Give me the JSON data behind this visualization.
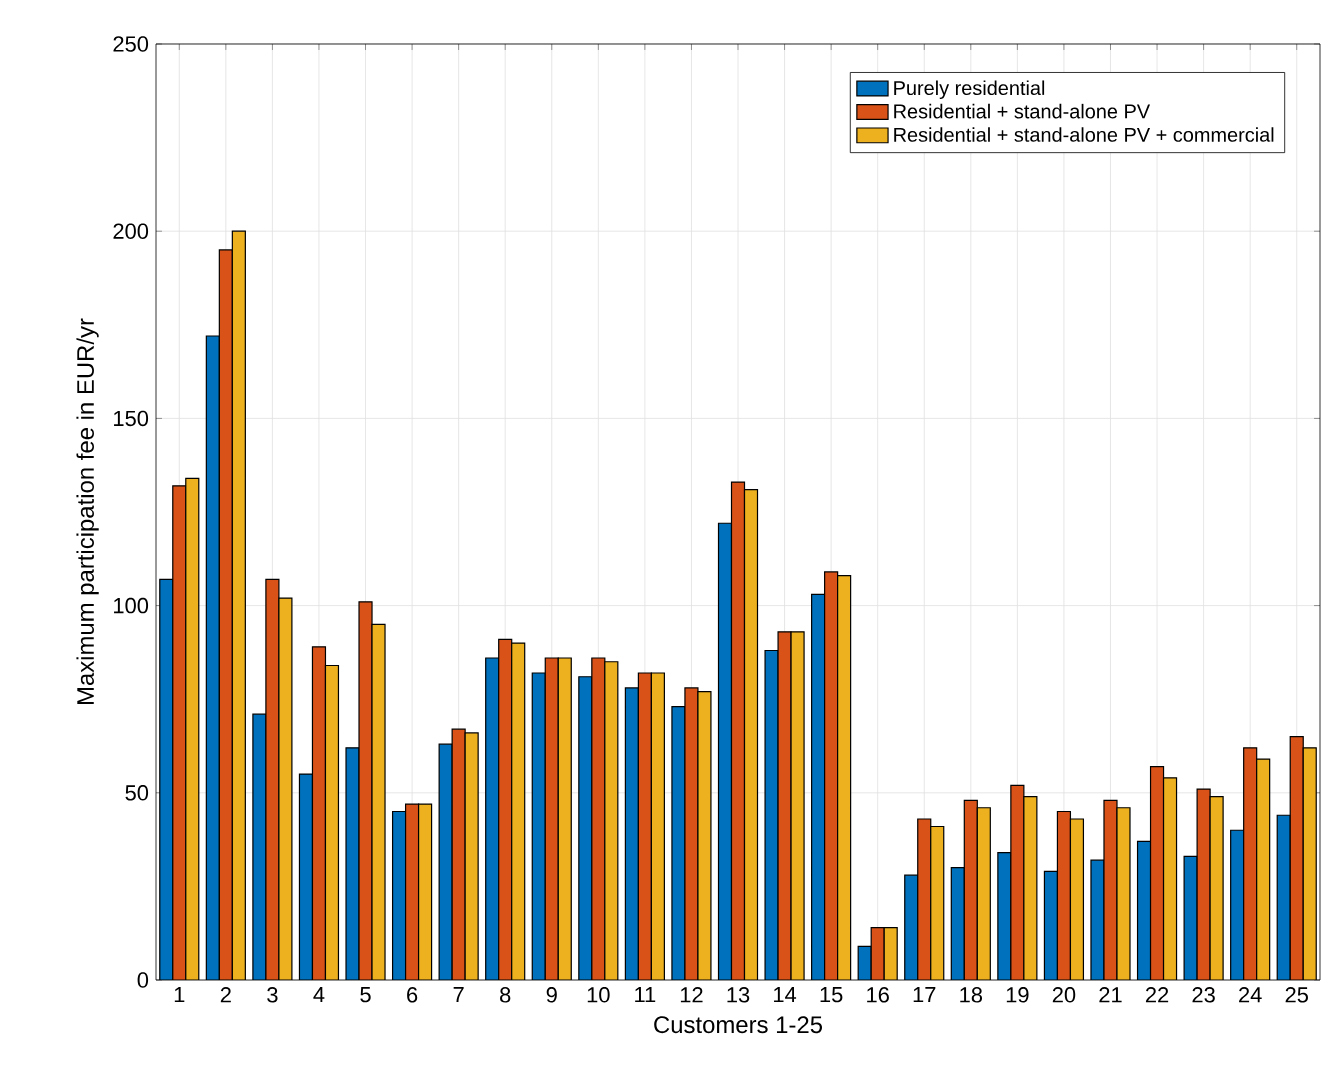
{
  "chart_data": {
    "type": "bar",
    "xlabel": "Customers 1-25",
    "ylabel": "Maximum participation fee in EUR/yr",
    "categories": [
      "1",
      "2",
      "3",
      "4",
      "5",
      "6",
      "7",
      "8",
      "9",
      "10",
      "11",
      "12",
      "13",
      "14",
      "15",
      "16",
      "17",
      "18",
      "19",
      "20",
      "21",
      "22",
      "23",
      "24",
      "25"
    ],
    "series": [
      {
        "name": "Purely residential",
        "color": "#0072bd",
        "values": [
          107,
          172,
          71,
          55,
          62,
          45,
          63,
          86,
          82,
          81,
          78,
          73,
          122,
          88,
          103,
          9,
          28,
          30,
          34,
          29,
          32,
          37,
          33,
          40,
          44
        ]
      },
      {
        "name": "Residential + stand-alone PV",
        "color": "#d95319",
        "values": [
          132,
          195,
          107,
          89,
          101,
          47,
          67,
          91,
          86,
          86,
          82,
          78,
          133,
          93,
          109,
          14,
          43,
          48,
          52,
          45,
          48,
          57,
          51,
          62,
          65
        ]
      },
      {
        "name": "Residential + stand-alone PV + commercial",
        "color": "#edb120",
        "values": [
          134,
          200,
          102,
          84,
          95,
          47,
          66,
          90,
          86,
          85,
          82,
          77,
          131,
          93,
          108,
          14,
          41,
          46,
          49,
          43,
          46,
          54,
          49,
          59,
          62
        ]
      }
    ],
    "ylim": [
      0,
      250
    ],
    "yticks": [
      0,
      50,
      100,
      150,
      200,
      250
    ],
    "grid": true,
    "legend": "top right"
  }
}
